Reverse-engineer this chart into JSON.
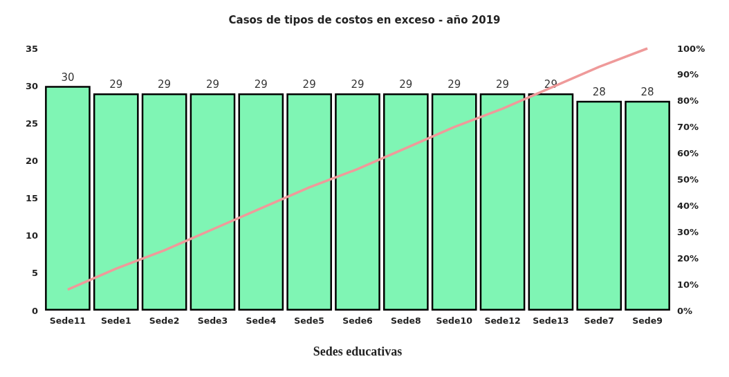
{
  "chart_data": {
    "type": "bar",
    "title": "Casos de tipos de costos en exceso - año 2019",
    "xlabel": "Sedes educativas",
    "categories": [
      "Sede11",
      "Sede1",
      "Sede2",
      "Sede3",
      "Sede4",
      "Sede5",
      "Sede6",
      "Sede8",
      "Sede10",
      "Sede12",
      "Sede13",
      "Sede7",
      "Sede9"
    ],
    "series": [
      {
        "color": "#7ff5b4",
        "values": [
          30,
          29,
          29,
          29,
          29,
          29,
          29,
          29,
          29,
          29,
          29,
          28,
          28
        ],
        "value_labels": [
          "30",
          "29",
          "29",
          "29",
          "29",
          "29",
          "29",
          "29",
          "29",
          "29",
          "29",
          "28",
          "28"
        ]
      },
      {
        "type": "line",
        "axis": "y2",
        "color": "#ef9a9a",
        "values": [
          8,
          16,
          23,
          31,
          39,
          47,
          54,
          62,
          70,
          77,
          85,
          93,
          100
        ]
      }
    ],
    "ylim": [
      0,
      35
    ],
    "yticks": [
      0,
      5,
      10,
      15,
      20,
      25,
      30,
      35
    ],
    "y2lim": [
      0,
      100
    ],
    "y2ticks": [
      {
        "value": 0,
        "label": "0%"
      },
      {
        "value": 10,
        "label": "10%"
      },
      {
        "value": 20,
        "label": "20%"
      },
      {
        "value": 30,
        "label": "30%"
      },
      {
        "value": 40,
        "label": "40%"
      },
      {
        "value": 50,
        "label": "50%"
      },
      {
        "value": 60,
        "label": "60%"
      },
      {
        "value": 70,
        "label": "70%"
      },
      {
        "value": 80,
        "label": "80%"
      },
      {
        "value": 90,
        "label": "90%"
      },
      {
        "value": 100,
        "label": "100%"
      }
    ],
    "grid": false,
    "marker": "none"
  }
}
